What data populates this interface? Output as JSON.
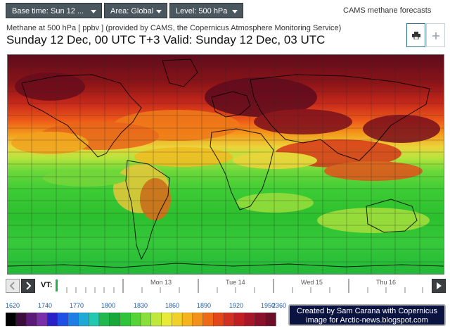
{
  "toolbar": {
    "base_time_label": "Base time: Sun 12 ...",
    "area_label": "Area: Global",
    "level_label": "Level: 500 hPa"
  },
  "brand": "CAMS methane forecasts",
  "subtitle": "Methane at 500 hPa [ ppbv ] (provided by CAMS, the Copernicus Atmosphere Monitoring Service)",
  "title": "Sunday 12 Dec, 00 UTC T+3 Valid: Sunday 12 Dec, 03 UTC",
  "icons": {
    "print": "print-icon",
    "add": "plus-icon",
    "prev": "chevron-left-icon",
    "next": "chevron-right-icon",
    "last": "play-icon"
  },
  "timeline": {
    "label": "VT:",
    "days": [
      "Mon 13",
      "Tue 14",
      "Wed 15",
      "Thu 16"
    ]
  },
  "legend": {
    "labels": [
      "1620",
      "1740",
      "1770",
      "1800",
      "1830",
      "1860",
      "1890",
      "1920",
      "1950",
      "2360"
    ],
    "colors": [
      "#000000",
      "#3a0d3a",
      "#5c1a78",
      "#7a2fa8",
      "#2a20c8",
      "#1e4fe6",
      "#1e7ee6",
      "#1fa9d6",
      "#20c9b0",
      "#21b850",
      "#19a83a",
      "#2fc43a",
      "#55d43a",
      "#8ae03a",
      "#bfe83a",
      "#e8ea3a",
      "#f2d02a",
      "#f6b21f",
      "#f4911b",
      "#ef6a17",
      "#e4481a",
      "#d43022",
      "#c21f25",
      "#a8162a",
      "#8b112a",
      "#6e0d26"
    ]
  },
  "credit": {
    "line1": "Created by Sam Carana with Copernicus",
    "line2": "image for Arctic-news.blogspot.com"
  }
}
